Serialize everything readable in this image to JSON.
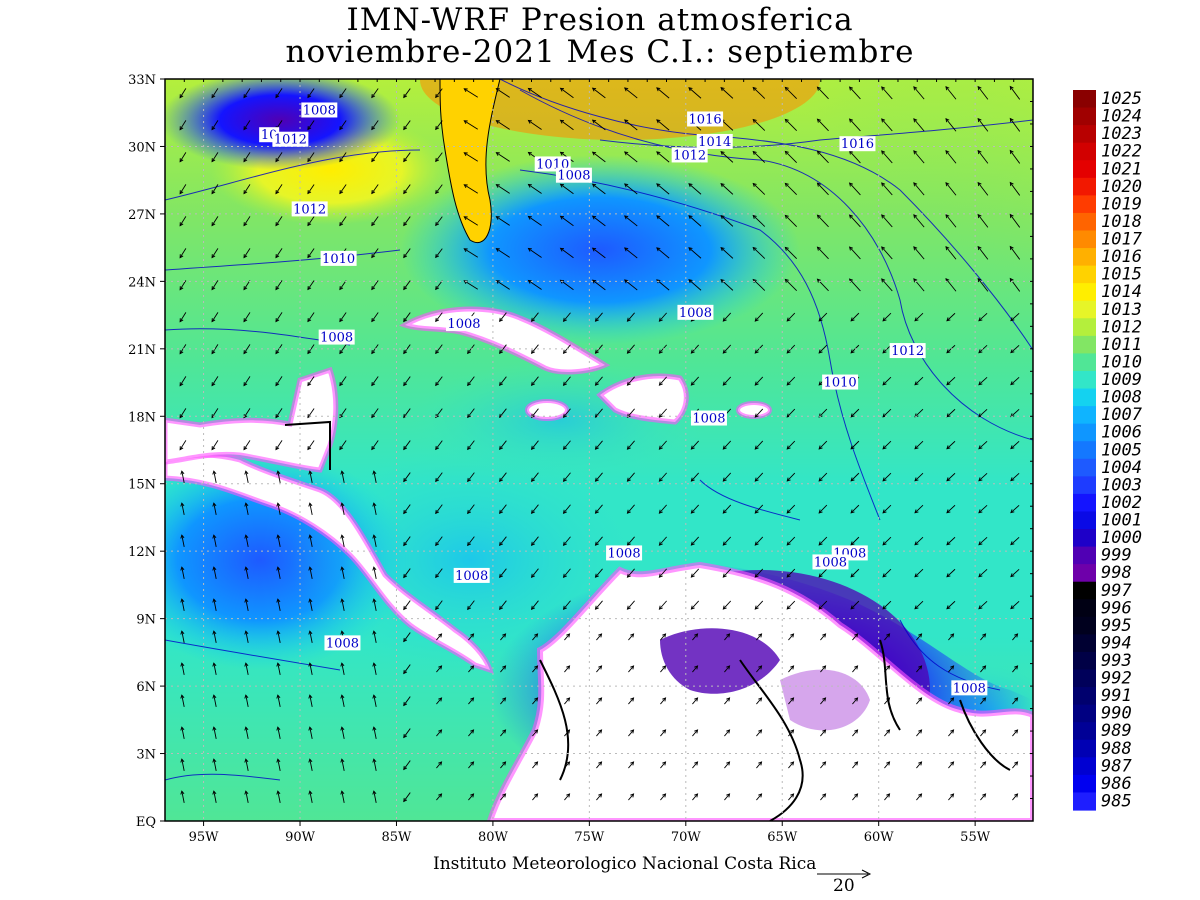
{
  "title": {
    "line1": "IMN-WRF  Presion atmosferica",
    "line2": "noviembre-2021 Mes C.I.: septiembre"
  },
  "credit": "Instituto Meteorologico Nacional Costa Rica",
  "reference_vector": {
    "label": "20"
  },
  "map": {
    "lon_range": [
      -97,
      -52
    ],
    "lat_range": [
      0,
      33
    ],
    "lat_ticks": [
      "33N",
      "30N",
      "27N",
      "24N",
      "21N",
      "18N",
      "15N",
      "12N",
      "9N",
      "6N",
      "3N",
      "EQ"
    ],
    "lon_ticks": [
      "95W",
      "90W",
      "85W",
      "80W",
      "75W",
      "70W",
      "65W",
      "60W",
      "55W"
    ],
    "contour_labels": [
      {
        "text": "1008",
        "lon": -89.0,
        "lat": 31.6
      },
      {
        "text": "10",
        "lon": -91.6,
        "lat": 30.5
      },
      {
        "text": "1012",
        "lon": -90.5,
        "lat": 30.3
      },
      {
        "text": "1012",
        "lon": -89.5,
        "lat": 27.2
      },
      {
        "text": "1010",
        "lon": -88.0,
        "lat": 25.0
      },
      {
        "text": "1008",
        "lon": -88.1,
        "lat": 21.5
      },
      {
        "text": "1008",
        "lon": -81.5,
        "lat": 22.1
      },
      {
        "text": "1010",
        "lon": -76.9,
        "lat": 29.2
      },
      {
        "text": "1008",
        "lon": -75.8,
        "lat": 28.7
      },
      {
        "text": "1016",
        "lon": -69.0,
        "lat": 31.2
      },
      {
        "text": "1014",
        "lon": -68.5,
        "lat": 30.2
      },
      {
        "text": "1012",
        "lon": -69.8,
        "lat": 29.6
      },
      {
        "text": "1016",
        "lon": -61.1,
        "lat": 30.1
      },
      {
        "text": "1008",
        "lon": -69.5,
        "lat": 22.6
      },
      {
        "text": "1012",
        "lon": -58.5,
        "lat": 20.9
      },
      {
        "text": "1010",
        "lon": -62.0,
        "lat": 19.5
      },
      {
        "text": "1008",
        "lon": -68.8,
        "lat": 17.9
      },
      {
        "text": "1008",
        "lon": -73.2,
        "lat": 11.9
      },
      {
        "text": "1008",
        "lon": -61.5,
        "lat": 11.9
      },
      {
        "text": "1008",
        "lon": -62.5,
        "lat": 11.5
      },
      {
        "text": "1008",
        "lon": -81.1,
        "lat": 10.9
      },
      {
        "text": "1008",
        "lon": -87.8,
        "lat": 7.9
      },
      {
        "text": "1008",
        "lon": -55.3,
        "lat": 5.9
      }
    ]
  },
  "colorbar": {
    "labels": [
      "1025",
      "1024",
      "1023",
      "1022",
      "1021",
      "1020",
      "1019",
      "1018",
      "1017",
      "1016",
      "1015",
      "1014",
      "1013",
      "1012",
      "1011",
      "1010",
      "1009",
      "1008",
      "1007",
      "1006",
      "1005",
      "1004",
      "1003",
      "1002",
      "1001",
      "1000",
      "999",
      "998",
      "997",
      "996",
      "995",
      "994",
      "993",
      "992",
      "991",
      "990",
      "989",
      "988",
      "987",
      "986",
      "985"
    ],
    "colors": [
      "#8a0000",
      "#a00000",
      "#b80000",
      "#d20000",
      "#e40000",
      "#f21800",
      "#ff3c00",
      "#ff6400",
      "#ff8a00",
      "#ffb000",
      "#ffd200",
      "#ffee00",
      "#e6f528",
      "#b4ef3c",
      "#82e664",
      "#50e696",
      "#32e6c8",
      "#14d2f0",
      "#0fb4ff",
      "#0f96ff",
      "#1478ff",
      "#1e5aff",
      "#1e3cff",
      "#1414ff",
      "#0a0ae6",
      "#1e00c8",
      "#5000b4",
      "#6e00aa",
      "#000000",
      "#000014",
      "#00001e",
      "#000032",
      "#000046",
      "#00005a",
      "#00006e",
      "#000082",
      "#000096",
      "#0000b4",
      "#0000d2",
      "#0000f0",
      "#1e1eff"
    ]
  },
  "colors": {
    "land": "#ffffff",
    "high_pressure": "#ff3c00",
    "low_pressure": "#1e3cff",
    "contour": "#0000c8",
    "label_text": "#0000c8"
  }
}
